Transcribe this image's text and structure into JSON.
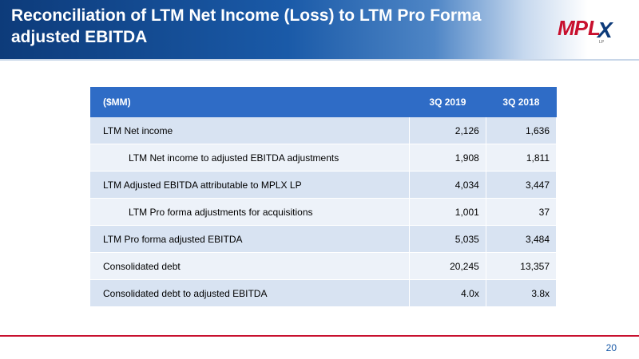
{
  "header": {
    "title": "Reconciliation of LTM Net Income (Loss) to LTM Pro Forma adjusted EBITDA"
  },
  "logo": {
    "mp": "MP",
    "l": "L",
    "x": "X",
    "lp": "LP"
  },
  "table": {
    "columns": [
      "($MM)",
      "3Q 2019",
      "3Q 2018"
    ],
    "rows": [
      {
        "label": "LTM Net income",
        "q2019": "2,126",
        "q2018": "1,636"
      },
      {
        "label": "LTM Net income to adjusted EBITDA adjustments",
        "q2019": "1,908",
        "q2018": "1,811"
      },
      {
        "label": "LTM Adjusted EBITDA attributable to MPLX LP",
        "q2019": "4,034",
        "q2018": "3,447"
      },
      {
        "label": "LTM Pro forma adjustments for acquisitions",
        "q2019": "1,001",
        "q2018": "37"
      },
      {
        "label": "LTM Pro forma adjusted EBITDA",
        "q2019": "5,035",
        "q2018": "3,484"
      },
      {
        "label": "Consolidated debt",
        "q2019": "20,245",
        "q2018": "13,357"
      },
      {
        "label": "Consolidated debt to adjusted EBITDA",
        "q2019": "4.0x",
        "q2018": "3.8x"
      }
    ]
  },
  "footer": {
    "page_number": "20"
  },
  "colors": {
    "header_dark": "#0d3b7a",
    "table_header": "#2f6cc6",
    "row_odd": "#d8e3f2",
    "row_even": "#edf2f9",
    "accent_red": "#c8102e"
  }
}
